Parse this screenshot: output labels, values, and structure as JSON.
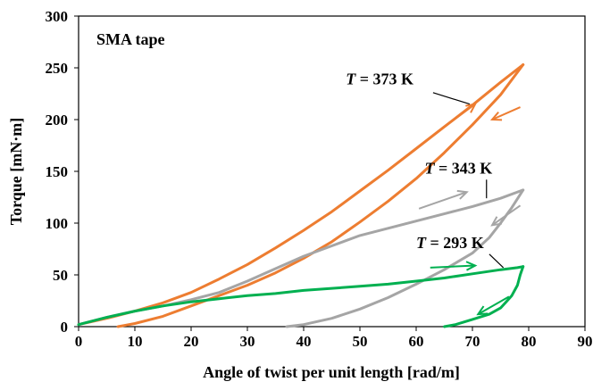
{
  "chart_data": {
    "type": "line",
    "xlabel": "Angle of twist per unit length [rad/m]",
    "ylabel": "Torque [mN·m]",
    "xlim": [
      0,
      90
    ],
    "ylim": [
      0,
      300
    ],
    "xticks": [
      "0",
      "10",
      "20",
      "30",
      "40",
      "50",
      "60",
      "70",
      "80",
      "90"
    ],
    "yticks": [
      "0",
      "50",
      "100",
      "150",
      "200",
      "250",
      "300"
    ],
    "grid": false,
    "legend": "none",
    "panel_label": "SMA tape",
    "series": [
      {
        "label": "T = 373 K",
        "label_T": "T",
        "label_rest": " = 373 K",
        "color": "#ed7d31",
        "loading": {
          "x": [
            0,
            5,
            10,
            15,
            20,
            25,
            30,
            35,
            40,
            45,
            50,
            55,
            60,
            65,
            70,
            75,
            79
          ],
          "y": [
            2,
            8,
            15,
            23,
            33,
            46,
            60,
            76,
            93,
            111,
            131,
            151,
            172,
            193,
            214,
            236,
            253
          ]
        },
        "unloading": {
          "x": [
            79,
            75,
            70,
            65,
            60,
            55,
            50,
            45,
            40,
            35,
            30,
            25,
            20,
            15,
            10,
            8,
            7
          ],
          "y": [
            253,
            224,
            195,
            168,
            143,
            121,
            101,
            82,
            66,
            52,
            40,
            30,
            20,
            10,
            3,
            1,
            0
          ]
        }
      },
      {
        "label": "T = 343 K",
        "label_T": "T",
        "label_rest": " = 343 K",
        "color": "#a5a5a5",
        "loading": {
          "x": [
            0,
            5,
            10,
            15,
            20,
            25,
            30,
            35,
            40,
            45,
            50,
            55,
            60,
            65,
            70,
            75,
            79
          ],
          "y": [
            2,
            9,
            15,
            20,
            26,
            33,
            44,
            56,
            68,
            78,
            88,
            95,
            102,
            109,
            116,
            124,
            132
          ]
        },
        "unloading": {
          "x": [
            79,
            77,
            75,
            73,
            70,
            65,
            60,
            55,
            50,
            45,
            40,
            37
          ],
          "y": [
            132,
            115,
            100,
            86,
            71,
            55,
            41,
            28,
            17,
            8,
            2,
            0
          ]
        }
      },
      {
        "label": "T = 293 K",
        "label_T": "T",
        "label_rest": " = 293 K",
        "color": "#00b050",
        "loading": {
          "x": [
            0,
            5,
            10,
            15,
            20,
            25,
            30,
            35,
            40,
            45,
            50,
            55,
            60,
            65,
            70,
            75,
            78,
            79
          ],
          "y": [
            2,
            9,
            15,
            20,
            24,
            27,
            30,
            32,
            35,
            37,
            39,
            41,
            44,
            47,
            51,
            55,
            57,
            58
          ]
        },
        "unloading": {
          "x": [
            79,
            78.5,
            78,
            77,
            76,
            75,
            73,
            70,
            67,
            65
          ],
          "y": [
            58,
            50,
            40,
            30,
            24,
            18,
            12,
            7,
            2,
            0
          ]
        }
      }
    ],
    "annotations": [
      {
        "series": 0,
        "text_x": 47.5,
        "text_y": 234,
        "leader": [
          [
            63,
            226
          ],
          [
            69.5,
            215
          ]
        ]
      },
      {
        "series": 1,
        "text_x": 61.5,
        "text_y": 148,
        "leader": [
          [
            72.5,
            142
          ],
          [
            72.5,
            124
          ]
        ]
      },
      {
        "series": 2,
        "text_x": 60,
        "text_y": 76,
        "leader": [
          [
            73,
            70
          ],
          [
            75.5,
            57
          ]
        ]
      }
    ],
    "direction_arrows": [
      {
        "series": 0,
        "from": [
          63.5,
          187
        ],
        "to": [
          70.5,
          215
        ]
      },
      {
        "series": 0,
        "from": [
          78.5,
          212
        ],
        "to": [
          73.5,
          200
        ]
      },
      {
        "series": 1,
        "from": [
          60.5,
          114
        ],
        "to": [
          69,
          130
        ]
      },
      {
        "series": 1,
        "from": [
          78.5,
          117
        ],
        "to": [
          73.5,
          98
        ]
      },
      {
        "series": 2,
        "from": [
          62.5,
          57
        ],
        "to": [
          70.5,
          59
        ]
      },
      {
        "series": 2,
        "from": [
          76.5,
          29
        ],
        "to": [
          71,
          12
        ]
      }
    ]
  }
}
